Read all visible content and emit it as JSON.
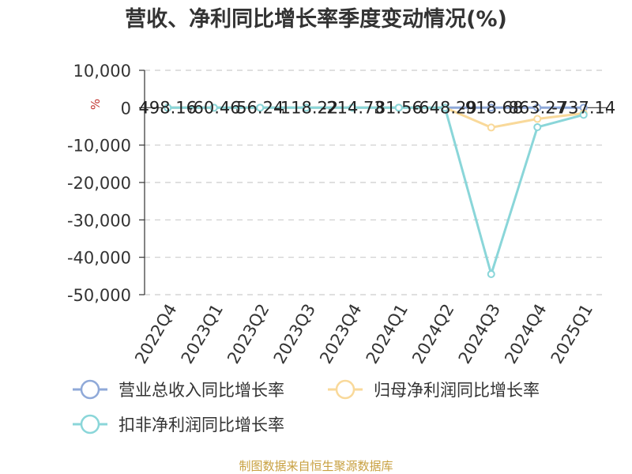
{
  "chart_data": {
    "type": "line",
    "title": "营收、净利同比增长率季度变动情况(%)",
    "ylabel": "%",
    "categories": [
      "2022Q4",
      "2023Q1",
      "2023Q2",
      "2023Q3",
      "2023Q4",
      "2024Q1",
      "2024Q2",
      "2024Q3",
      "2024Q4",
      "2025Q1"
    ],
    "ylim": [
      -50000,
      10000
    ],
    "yticks": [
      "10,000",
      "0",
      "-10,000",
      "-20,000",
      "-30,000",
      "-40,000",
      "-50,000"
    ],
    "ytick_values": [
      10000,
      0,
      -10000,
      -20000,
      -30000,
      -40000,
      -50000
    ],
    "grid": true,
    "legend_position": "bottom",
    "series": [
      {
        "name": "营业总收入同比增长率",
        "color": "#8fa9d8",
        "values": [
          0,
          0,
          0,
          0,
          0,
          0,
          0,
          0,
          0,
          0
        ]
      },
      {
        "name": "归母净利润同比增长率",
        "color": "#f9d99a",
        "values": [
          0,
          0,
          0,
          0,
          0,
          0,
          0,
          -5300,
          -3000,
          -1500
        ]
      },
      {
        "name": "扣非净利润同比增长率",
        "color": "#8ad6d9",
        "values": [
          0,
          0,
          0,
          0,
          0,
          0,
          0,
          -44500,
          -5200,
          -1900
        ]
      }
    ],
    "data_labels": [
      "498.16",
      "-60.46",
      "56.24",
      "-118.22",
      "-214.73",
      "81.56",
      "-648.29",
      "-918.68",
      "863.27",
      "-737.14"
    ]
  },
  "source": "制图数据来自恒生聚源数据库"
}
